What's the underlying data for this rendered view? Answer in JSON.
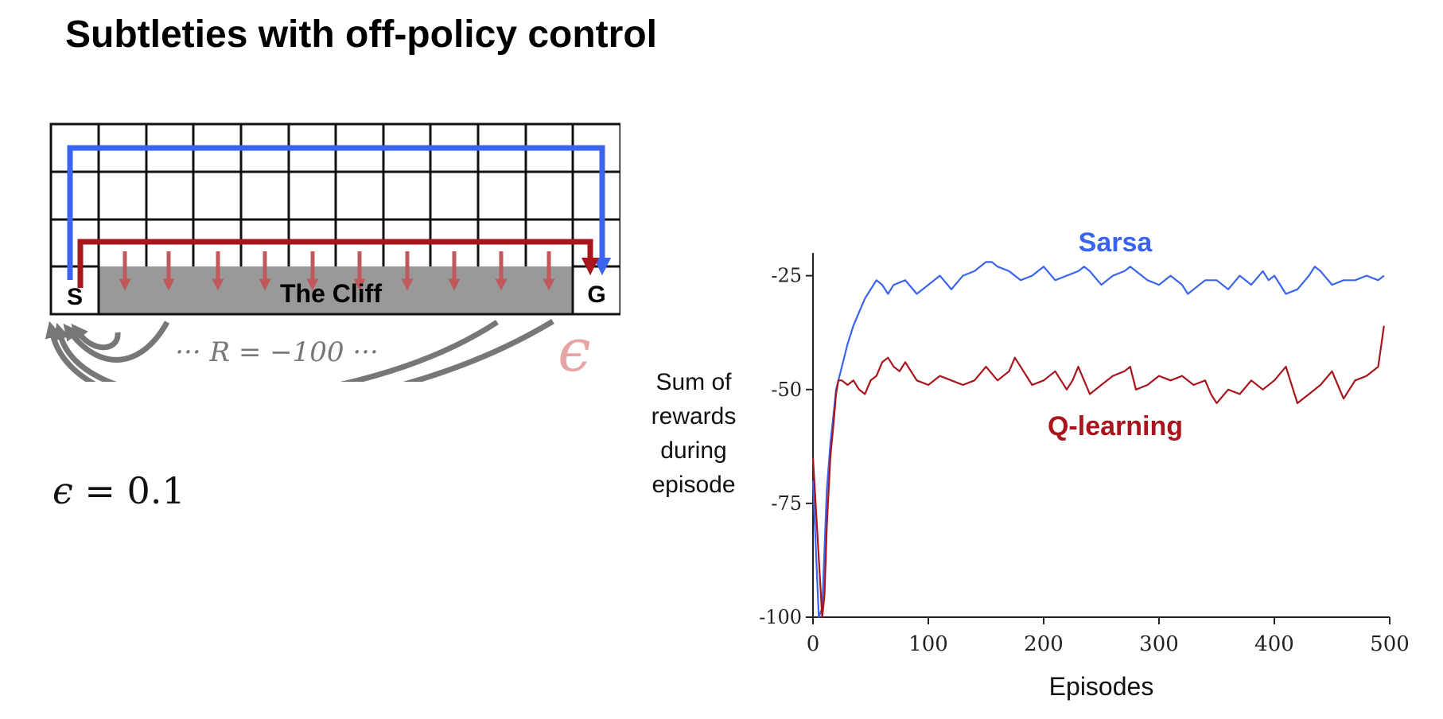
{
  "title": "Subtleties with off-policy control",
  "gridworld": {
    "start_label": "S",
    "goal_label": "G",
    "cliff_label": "The Cliff",
    "reward_annotation": "··· R = −100 ···",
    "epsilon_symbol": "ϵ",
    "columns": 12,
    "rows": 4,
    "path_colors": {
      "safe": "#3a64f0",
      "optimal": "#a8151c",
      "cliff_fall": "#777777",
      "cliff_arrows": "#c0585c"
    }
  },
  "epsilon_setting": {
    "symbol": "ϵ",
    "text": " = 0.1"
  },
  "chart_data": {
    "type": "line",
    "xlabel": "Episodes",
    "ylabel": [
      "Sum of",
      "rewards",
      "during",
      "episode"
    ],
    "xlim": [
      0,
      500
    ],
    "ylim": [
      -100,
      -20
    ],
    "xticks": [
      0,
      100,
      200,
      300,
      400,
      500
    ],
    "yticks": [
      -100,
      -75,
      -50,
      -25
    ],
    "ytick_labels": [
      "-100",
      "-75",
      "-50",
      "-25"
    ],
    "grid": false,
    "legend": "inline labels",
    "series": [
      {
        "name": "Sarsa",
        "color": "#3a64f0",
        "x": [
          0,
          5,
          8,
          10,
          12,
          15,
          18,
          20,
          25,
          30,
          35,
          40,
          45,
          50,
          55,
          60,
          65,
          70,
          80,
          90,
          100,
          110,
          120,
          130,
          140,
          150,
          155,
          160,
          170,
          180,
          190,
          200,
          210,
          220,
          230,
          235,
          240,
          250,
          260,
          270,
          275,
          280,
          290,
          300,
          310,
          320,
          325,
          330,
          340,
          350,
          360,
          370,
          380,
          390,
          395,
          400,
          410,
          420,
          430,
          435,
          440,
          450,
          460,
          470,
          480,
          490,
          495
        ],
        "values": [
          -70,
          -100,
          -98,
          -85,
          -72,
          -62,
          -55,
          -50,
          -45,
          -40,
          -36,
          -33,
          -30,
          -28,
          -26,
          -27,
          -29,
          -27,
          -26,
          -29,
          -27,
          -25,
          -28,
          -25,
          -24,
          -22,
          -22,
          -23,
          -24,
          -26,
          -25,
          -23,
          -26,
          -25,
          -24,
          -23,
          -24,
          -27,
          -25,
          -24,
          -23,
          -24,
          -26,
          -27,
          -25,
          -27,
          -29,
          -28,
          -26,
          -26,
          -28,
          -25,
          -27,
          -24,
          -26,
          -25,
          -29,
          -28,
          -25,
          -23,
          -24,
          -27,
          -26,
          -26,
          -25,
          -26,
          -25
        ]
      },
      {
        "name": "Q-learning",
        "color": "#a8151c",
        "x": [
          0,
          8,
          10,
          12,
          15,
          18,
          20,
          22,
          25,
          30,
          35,
          40,
          45,
          50,
          55,
          60,
          65,
          70,
          75,
          80,
          90,
          100,
          110,
          120,
          130,
          140,
          150,
          160,
          170,
          175,
          180,
          190,
          200,
          210,
          220,
          225,
          230,
          240,
          250,
          260,
          270,
          275,
          280,
          290,
          300,
          310,
          320,
          330,
          340,
          345,
          350,
          360,
          370,
          380,
          390,
          400,
          410,
          420,
          430,
          440,
          450,
          460,
          470,
          480,
          490,
          495
        ],
        "values": [
          -65,
          -100,
          -95,
          -80,
          -65,
          -57,
          -51,
          -48,
          -48,
          -49,
          -48,
          -50,
          -51,
          -48,
          -47,
          -44,
          -43,
          -45,
          -46,
          -44,
          -48,
          -49,
          -47,
          -48,
          -49,
          -48,
          -45,
          -48,
          -46,
          -43,
          -45,
          -49,
          -48,
          -46,
          -50,
          -48,
          -45,
          -51,
          -49,
          -47,
          -46,
          -45,
          -50,
          -49,
          -47,
          -48,
          -47,
          -49,
          -48,
          -51,
          -53,
          -50,
          -51,
          -48,
          -50,
          -48,
          -45,
          -53,
          -51,
          -49,
          -46,
          -52,
          -48,
          -47,
          -45,
          -36
        ]
      }
    ]
  }
}
